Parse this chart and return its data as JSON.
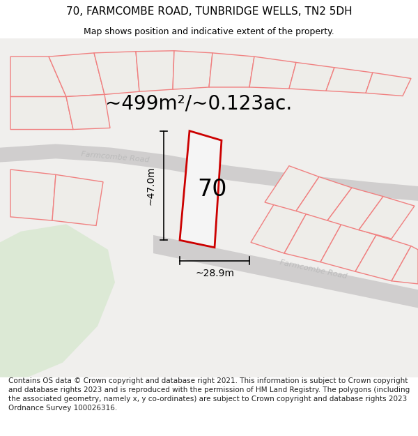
{
  "title": "70, FARMCOMBE ROAD, TUNBRIDGE WELLS, TN2 5DH",
  "subtitle": "Map shows position and indicative extent of the property.",
  "area_text": "~499m²/~0.123ac.",
  "label_70": "70",
  "dim_width": "~28.9m",
  "dim_height": "~47.0m",
  "road_label1": "Farmcombe Road",
  "road_label2": "Farmcombe Road",
  "footer": "Contains OS data © Crown copyright and database right 2021. This information is subject to Crown copyright and database rights 2023 and is reproduced with the permission of HM Land Registry. The polygons (including the associated geometry, namely x, y co-ordinates) are subject to Crown copyright and database rights 2023 Ordnance Survey 100026316.",
  "map_bg": "#f0efed",
  "road_color": "#d0cfcc",
  "plot_line_color": "#f08080",
  "highlight_color": "#cc0000",
  "text_color": "#000000",
  "road_text_color": "#bbbbbb",
  "green_color": "#dce9d5",
  "title_fontsize": 11,
  "subtitle_fontsize": 9,
  "area_fontsize": 20,
  "label70_fontsize": 24,
  "dim_fontsize": 10,
  "footer_fontsize": 7.5,
  "road_label_fontsize": 8
}
